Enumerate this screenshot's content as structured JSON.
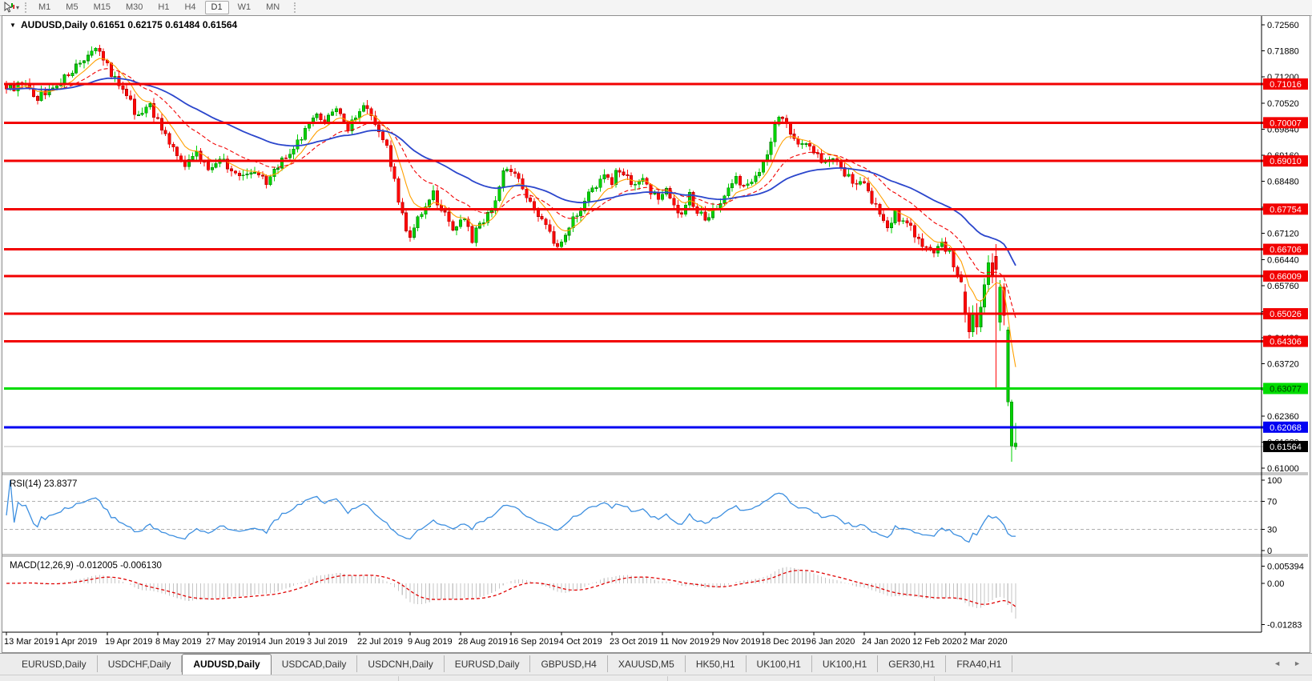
{
  "toolbar": {
    "dropdown_caret": "▾",
    "timeframes": [
      {
        "label": "M1",
        "active": false
      },
      {
        "label": "M5",
        "active": false
      },
      {
        "label": "M15",
        "active": false
      },
      {
        "label": "M30",
        "active": false
      },
      {
        "label": "H1",
        "active": false
      },
      {
        "label": "H4",
        "active": false
      },
      {
        "label": "D1",
        "active": true
      },
      {
        "label": "W1",
        "active": false
      },
      {
        "label": "MN",
        "active": false
      }
    ]
  },
  "chart_window": {
    "title_marker": "▼",
    "symbol_title": "AUDUSD,Daily",
    "ohlc_values": [
      "0.61651",
      "0.62175",
      "0.61484",
      "0.61564"
    ],
    "price_axis_ticks": [
      "0.72560",
      "0.71880",
      "0.71200",
      "0.70520",
      "0.69840",
      "0.69160",
      "0.68480",
      "0.67800",
      "0.67120",
      "0.66440",
      "0.65760",
      "0.65080",
      "0.64400",
      "0.63720",
      "0.63040",
      "0.62360",
      "0.61680",
      "0.61000"
    ],
    "levels": [
      {
        "label": "0.71016",
        "price": 0.71016,
        "color": "#f20000",
        "text_color": "#ffffff",
        "handle": false
      },
      {
        "label": "0.70007",
        "price": 0.70007,
        "color": "#f20000",
        "text_color": "#ffffff",
        "handle": false
      },
      {
        "label": "0.69010",
        "price": 0.6901,
        "color": "#f20000",
        "text_color": "#ffffff",
        "handle": false
      },
      {
        "label": "0.67754",
        "price": 0.67754,
        "color": "#f20000",
        "text_color": "#ffffff",
        "handle": true
      },
      {
        "label": "0.66706",
        "price": 0.66706,
        "color": "#f20000",
        "text_color": "#ffffff",
        "handle": true
      },
      {
        "label": "0.66009",
        "price": 0.66009,
        "color": "#f20000",
        "text_color": "#ffffff",
        "handle": true
      },
      {
        "label": "0.65026",
        "price": 0.65026,
        "color": "#f20000",
        "text_color": "#ffffff",
        "handle": true
      },
      {
        "label": "0.64306",
        "price": 0.64306,
        "color": "#f20000",
        "text_color": "#ffffff",
        "handle": true
      },
      {
        "label": "0.63077",
        "price": 0.63077,
        "color": "#00dc00",
        "text_color": "#003300",
        "handle": true
      },
      {
        "label": "0.62068",
        "price": 0.62068,
        "color": "#0202f2",
        "text_color": "#ffffff",
        "handle": true
      }
    ],
    "current_price": {
      "label": "0.61564",
      "price": 0.61564,
      "bg": "#000000",
      "text_color": "#ffffff"
    },
    "date_labels": [
      "13 Mar 2019",
      "1 Apr 2019",
      "19 Apr 2019",
      "8 May 2019",
      "27 May 2019",
      "14 Jun 2019",
      "3 Jul 2019",
      "22 Jul 2019",
      "9 Aug 2019",
      "28 Aug 2019",
      "16 Sep 2019",
      "4 Oct 2019",
      "23 Oct 2019",
      "11 Nov 2019",
      "29 Nov 2019",
      "18 Dec 2019",
      "6 Jan 2020",
      "24 Jan 2020",
      "12 Feb 2020",
      "2 Mar 2020"
    ],
    "rsi": {
      "title": "RSI(14) 23.8377",
      "period": 14,
      "current": 23.8377,
      "axis_ticks": [
        "100",
        "70",
        "30",
        "0"
      ],
      "upper_level": 70,
      "lower_level": 30
    },
    "macd": {
      "title": "MACD(12,26,9) -0.012005 -0.006130",
      "fast": 12,
      "slow": 26,
      "signal_period": 9,
      "macd_current": -0.012005,
      "signal_current": -0.00613,
      "axis_ticks": [
        "0.005394",
        "0.00",
        "-0.01283"
      ]
    }
  },
  "chart_data": {
    "type": "candlestick",
    "symbol": "AUDUSD",
    "timeframe": "Daily",
    "bars": 261,
    "price_min": 0.61,
    "price_max": 0.7256,
    "tick_step": 0.0068,
    "last_candle": {
      "open": 0.61651,
      "high": 0.62175,
      "low": 0.61484,
      "close": 0.61564
    },
    "price_anchors": [
      [
        0,
        0.7085
      ],
      [
        4,
        0.7105
      ],
      [
        8,
        0.7068
      ],
      [
        12,
        0.7098
      ],
      [
        16,
        0.7125
      ],
      [
        20,
        0.716
      ],
      [
        23,
        0.7196
      ],
      [
        25,
        0.7172
      ],
      [
        28,
        0.7112
      ],
      [
        31,
        0.7068
      ],
      [
        34,
        0.7015
      ],
      [
        37,
        0.704
      ],
      [
        40,
        0.698
      ],
      [
        43,
        0.6935
      ],
      [
        46,
        0.6895
      ],
      [
        49,
        0.6925
      ],
      [
        52,
        0.6885
      ],
      [
        55,
        0.6915
      ],
      [
        58,
        0.6878
      ],
      [
        61,
        0.6855
      ],
      [
        64,
        0.6872
      ],
      [
        67,
        0.6842
      ],
      [
        70,
        0.6882
      ],
      [
        73,
        0.693
      ],
      [
        76,
        0.6955
      ],
      [
        78,
        0.7
      ],
      [
        80,
        0.703
      ],
      [
        82,
        0.701
      ],
      [
        84,
        0.704
      ],
      [
        86,
        0.7015
      ],
      [
        88,
        0.6985
      ],
      [
        90,
        0.7012
      ],
      [
        92,
        0.7042
      ],
      [
        94,
        0.702
      ],
      [
        96,
        0.6985
      ],
      [
        98,
        0.693
      ],
      [
        100,
        0.6845
      ],
      [
        102,
        0.676
      ],
      [
        104,
        0.669
      ],
      [
        106,
        0.6745
      ],
      [
        108,
        0.6788
      ],
      [
        110,
        0.6815
      ],
      [
        112,
        0.678
      ],
      [
        114,
        0.6745
      ],
      [
        116,
        0.672
      ],
      [
        118,
        0.6755
      ],
      [
        120,
        0.6695
      ],
      [
        122,
        0.6735
      ],
      [
        124,
        0.6765
      ],
      [
        126,
        0.68
      ],
      [
        128,
        0.687
      ],
      [
        130,
        0.688
      ],
      [
        132,
        0.6848
      ],
      [
        134,
        0.6815
      ],
      [
        136,
        0.678
      ],
      [
        138,
        0.6745
      ],
      [
        140,
        0.671
      ],
      [
        142,
        0.6675
      ],
      [
        144,
        0.6715
      ],
      [
        146,
        0.675
      ],
      [
        148,
        0.6775
      ],
      [
        150,
        0.681
      ],
      [
        152,
        0.6842
      ],
      [
        154,
        0.6862
      ],
      [
        156,
        0.685
      ],
      [
        158,
        0.688
      ],
      [
        160,
        0.6855
      ],
      [
        162,
        0.6832
      ],
      [
        164,
        0.6855
      ],
      [
        166,
        0.6825
      ],
      [
        168,
        0.6795
      ],
      [
        170,
        0.682
      ],
      [
        172,
        0.679
      ],
      [
        174,
        0.6762
      ],
      [
        176,
        0.6808
      ],
      [
        178,
        0.6775
      ],
      [
        180,
        0.6752
      ],
      [
        182,
        0.6765
      ],
      [
        184,
        0.679
      ],
      [
        186,
        0.6822
      ],
      [
        188,
        0.6855
      ],
      [
        190,
        0.6832
      ],
      [
        192,
        0.6858
      ],
      [
        194,
        0.6875
      ],
      [
        196,
        0.692
      ],
      [
        199,
        0.702
      ],
      [
        201,
        0.7
      ],
      [
        203,
        0.6965
      ],
      [
        205,
        0.6935
      ],
      [
        207,
        0.695
      ],
      [
        209,
        0.6915
      ],
      [
        211,
        0.689
      ],
      [
        213,
        0.691
      ],
      [
        215,
        0.688
      ],
      [
        217,
        0.6858
      ],
      [
        219,
        0.6845
      ],
      [
        221,
        0.6832
      ],
      [
        223,
        0.68
      ],
      [
        225,
        0.6765
      ],
      [
        227,
        0.6738
      ],
      [
        229,
        0.6762
      ],
      [
        231,
        0.6742
      ],
      [
        233,
        0.6722
      ],
      [
        235,
        0.67
      ],
      [
        237,
        0.6678
      ],
      [
        239,
        0.6668
      ],
      [
        241,
        0.6692
      ],
      [
        243,
        0.666
      ],
      [
        245,
        0.6612
      ],
      [
        246,
        0.658
      ]
    ],
    "explicit_candles": [
      {
        "i": 247,
        "o": 0.656,
        "h": 0.658,
        "l": 0.648,
        "c": 0.6505,
        "col": "r"
      },
      {
        "i": 248,
        "o": 0.6505,
        "h": 0.652,
        "l": 0.6438,
        "c": 0.6455,
        "col": "r"
      },
      {
        "i": 249,
        "o": 0.6455,
        "h": 0.6525,
        "l": 0.6442,
        "c": 0.6505,
        "col": "g"
      },
      {
        "i": 250,
        "o": 0.6505,
        "h": 0.653,
        "l": 0.6448,
        "c": 0.6468,
        "col": "r"
      },
      {
        "i": 251,
        "o": 0.6468,
        "h": 0.6538,
        "l": 0.6455,
        "c": 0.652,
        "col": "g"
      },
      {
        "i": 252,
        "o": 0.652,
        "h": 0.6596,
        "l": 0.6505,
        "c": 0.6578,
        "col": "g"
      },
      {
        "i": 253,
        "o": 0.6578,
        "h": 0.6655,
        "l": 0.656,
        "c": 0.6636,
        "col": "g"
      },
      {
        "i": 254,
        "o": 0.6636,
        "h": 0.666,
        "l": 0.6582,
        "c": 0.6605,
        "col": "r"
      },
      {
        "i": 255,
        "o": 0.6652,
        "h": 0.6684,
        "l": 0.6307,
        "c": 0.6618,
        "col": "r"
      },
      {
        "i": 256,
        "o": 0.648,
        "h": 0.659,
        "l": 0.6458,
        "c": 0.6572,
        "col": "g"
      },
      {
        "i": 257,
        "o": 0.6572,
        "h": 0.6582,
        "l": 0.6472,
        "c": 0.6498,
        "col": "r"
      },
      {
        "i": 258,
        "o": 0.646,
        "h": 0.6468,
        "l": 0.6262,
        "c": 0.6273,
        "col": "g"
      },
      {
        "i": 259,
        "o": 0.6273,
        "h": 0.6278,
        "l": 0.6117,
        "c": 0.6158,
        "col": "g"
      },
      {
        "i": 260,
        "o": 0.61651,
        "h": 0.62175,
        "l": 0.61484,
        "c": 0.61564,
        "col": "g"
      }
    ],
    "moving_averages": [
      {
        "name": "ma-fast",
        "period": 8,
        "color": "#ffa000",
        "width": 1.1,
        "dash": ""
      },
      {
        "name": "ma-mid",
        "period": 20,
        "color": "#f20000",
        "width": 1.1,
        "dash": "5 3"
      },
      {
        "name": "ma-slow",
        "period": 50,
        "color": "#2b46cc",
        "width": 1.8,
        "dash": ""
      }
    ],
    "colors": {
      "up": "#00d200",
      "up_stroke": "#067d06",
      "down": "#ff0808",
      "down_stroke": "#b30000",
      "rsi_line": "#3d8fe0",
      "rsi_level_dash": "#b0b0b0",
      "macd_hist": "#c6c6c6",
      "macd_signal": "#e00000",
      "last_price_line": "#bdbdbd",
      "axis_line": "#000000",
      "divider": "#8e8e8e"
    }
  },
  "tab_bar": {
    "tabs": [
      {
        "label": "EURUSD,Daily",
        "active": false
      },
      {
        "label": "USDCHF,Daily",
        "active": false
      },
      {
        "label": "AUDUSD,Daily",
        "active": true
      },
      {
        "label": "USDCAD,Daily",
        "active": false
      },
      {
        "label": "USDCNH,Daily",
        "active": false
      },
      {
        "label": "EURUSD,Daily",
        "active": false
      },
      {
        "label": "GBPUSD,H4",
        "active": false
      },
      {
        "label": "XAUUSD,M5",
        "active": false
      },
      {
        "label": "HK50,H1",
        "active": false
      },
      {
        "label": "UK100,H1",
        "active": false
      },
      {
        "label": "UK100,H1",
        "active": false
      },
      {
        "label": "GER30,H1",
        "active": false
      },
      {
        "label": "FRA40,H1",
        "active": false
      }
    ],
    "scroll_left": "◄",
    "scroll_right": "►"
  }
}
